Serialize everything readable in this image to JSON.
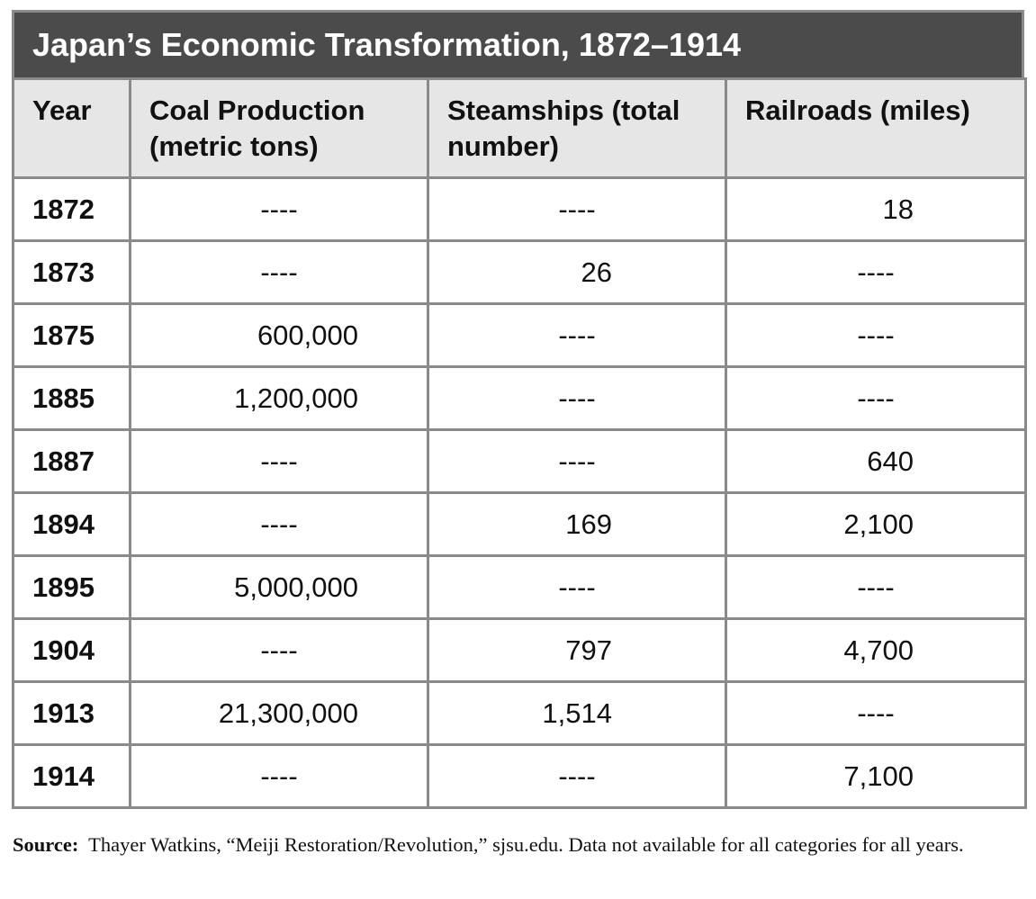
{
  "table": {
    "title": "Japan’s Economic Transformation, 1872–1914",
    "headers": [
      "Year",
      "Coal Production (metric tons)",
      "Steamships (total number)",
      "Railroads (miles)"
    ],
    "rows": [
      [
        "1872",
        "----",
        "----",
        "18"
      ],
      [
        "1873",
        "----",
        "26",
        "----"
      ],
      [
        "1875",
        "600,000",
        "----",
        "----"
      ],
      [
        "1885",
        "1,200,000",
        "----",
        "----"
      ],
      [
        "1887",
        "----",
        "----",
        "640"
      ],
      [
        "1894",
        "----",
        "169",
        "2,100"
      ],
      [
        "1895",
        "5,000,000",
        "----",
        "----"
      ],
      [
        "1904",
        "----",
        "797",
        "4,700"
      ],
      [
        "1913",
        "21,300,000",
        "1,514",
        "----"
      ],
      [
        "1914",
        "----",
        "----",
        "7,100"
      ]
    ]
  },
  "source": {
    "label": "Source:",
    "text": "Thayer Watkins, “Meiji Restoration/Revolution,” sjsu.edu. Data not available for all categories for all years."
  }
}
